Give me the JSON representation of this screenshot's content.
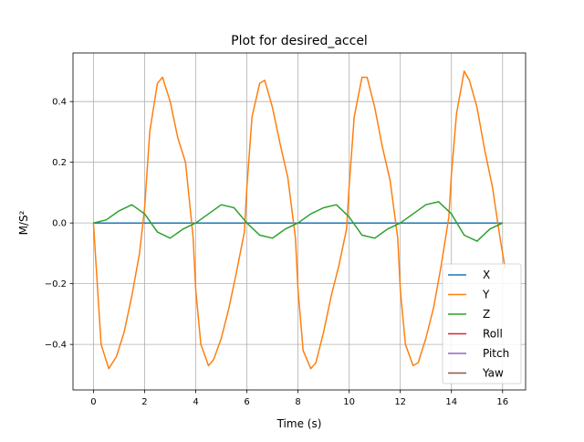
{
  "chart_data": {
    "type": "line",
    "title": "Plot for desired_accel",
    "xlabel": "Time (s)",
    "ylabel": "M/S²",
    "xlim": [
      -0.8,
      16.9
    ],
    "ylim": [
      -0.55,
      0.56
    ],
    "xticks": [
      0,
      2,
      4,
      6,
      8,
      10,
      12,
      14,
      16
    ],
    "yticks": [
      -0.4,
      -0.2,
      0.0,
      0.2,
      0.4
    ],
    "xtick_labels": [
      "0",
      "2",
      "4",
      "6",
      "8",
      "10",
      "12",
      "14",
      "16"
    ],
    "ytick_labels": [
      "−0.4",
      "−0.2",
      "0.0",
      "0.2",
      "0.4"
    ],
    "grid": true,
    "legend_position": "lower-right",
    "series": [
      {
        "name": "X",
        "color": "#1f77b4",
        "x": [
          0,
          16
        ],
        "y": [
          0,
          0
        ]
      },
      {
        "name": "Y",
        "color": "#ff7f0e",
        "x": [
          0,
          0.3,
          0.6,
          0.9,
          1.2,
          1.5,
          1.8,
          2.0,
          2.2,
          2.5,
          2.7,
          3.0,
          3.3,
          3.6,
          3.9,
          4.0,
          4.2,
          4.5,
          4.7,
          5.0,
          5.3,
          5.6,
          5.9,
          6.0,
          6.2,
          6.5,
          6.7,
          7.0,
          7.3,
          7.6,
          7.9,
          8.0,
          8.2,
          8.5,
          8.7,
          9.0,
          9.3,
          9.6,
          9.9,
          10.0,
          10.2,
          10.5,
          10.7,
          11.0,
          11.3,
          11.6,
          11.9,
          12.0,
          12.2,
          12.5,
          12.7,
          13.0,
          13.3,
          13.6,
          13.9,
          14.0,
          14.2,
          14.5,
          14.7,
          15.0,
          15.3,
          15.6,
          15.9,
          16.1
        ],
        "y": [
          0.0,
          -0.4,
          -0.48,
          -0.44,
          -0.36,
          -0.24,
          -0.1,
          0.05,
          0.3,
          0.46,
          0.48,
          0.4,
          0.28,
          0.2,
          -0.05,
          -0.22,
          -0.4,
          -0.47,
          -0.45,
          -0.38,
          -0.28,
          -0.16,
          -0.03,
          0.12,
          0.35,
          0.46,
          0.47,
          0.38,
          0.26,
          0.15,
          -0.05,
          -0.22,
          -0.42,
          -0.48,
          -0.46,
          -0.36,
          -0.24,
          -0.14,
          -0.02,
          0.12,
          0.35,
          0.48,
          0.48,
          0.38,
          0.25,
          0.14,
          -0.05,
          -0.22,
          -0.4,
          -0.47,
          -0.46,
          -0.38,
          -0.28,
          -0.14,
          0.02,
          0.16,
          0.36,
          0.5,
          0.47,
          0.38,
          0.24,
          0.12,
          -0.05,
          -0.15
        ]
      },
      {
        "name": "Z",
        "color": "#2ca02c",
        "x": [
          0,
          0.5,
          1.0,
          1.5,
          2.0,
          2.5,
          3.0,
          3.5,
          4.0,
          4.5,
          5.0,
          5.5,
          6.0,
          6.5,
          7.0,
          7.5,
          8.0,
          8.5,
          9.0,
          9.5,
          10.0,
          10.5,
          11.0,
          11.5,
          12.0,
          12.5,
          13.0,
          13.5,
          14.0,
          14.5,
          15.0,
          15.5,
          16.0
        ],
        "y": [
          0.0,
          0.01,
          0.04,
          0.06,
          0.03,
          -0.03,
          -0.05,
          -0.02,
          0.0,
          0.03,
          0.06,
          0.05,
          0.0,
          -0.04,
          -0.05,
          -0.02,
          0.0,
          0.03,
          0.05,
          0.06,
          0.02,
          -0.04,
          -0.05,
          -0.02,
          0.0,
          0.03,
          0.06,
          0.07,
          0.03,
          -0.04,
          -0.06,
          -0.02,
          0.0
        ]
      },
      {
        "name": "Roll",
        "color": "#d62728",
        "x": [
          0,
          16
        ],
        "y": [
          0,
          0
        ]
      },
      {
        "name": "Pitch",
        "color": "#9467bd",
        "x": [
          0,
          16
        ],
        "y": [
          0,
          0
        ]
      },
      {
        "name": "Yaw",
        "color": "#8c564b",
        "x": [
          0,
          16
        ],
        "y": [
          0,
          0
        ]
      }
    ]
  }
}
